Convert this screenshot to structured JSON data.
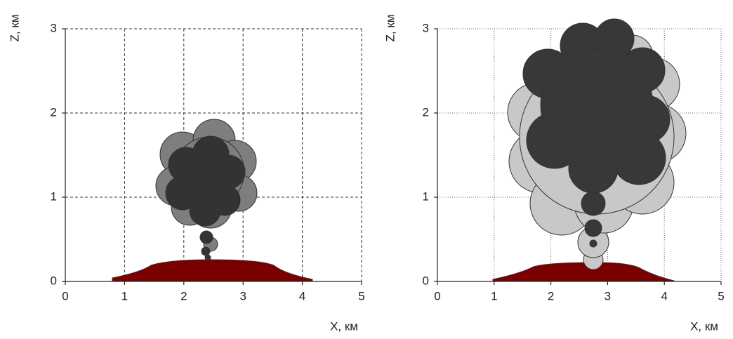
{
  "chart_data": [
    {
      "type": "illustration",
      "xlabel": "X, км",
      "ylabel": "Z, км",
      "xlim": [
        0,
        5
      ],
      "ylim": [
        0,
        3
      ],
      "xticks": [
        0,
        1,
        2,
        3,
        4,
        5
      ],
      "yticks": [
        0,
        1,
        2,
        3
      ],
      "grid": true
    },
    {
      "type": "illustration",
      "xlabel": "X, км",
      "ylabel": "Z, км",
      "xlim": [
        0,
        5
      ],
      "ylim": [
        0,
        3
      ],
      "xticks": [
        0,
        1,
        2,
        3,
        4,
        5
      ],
      "yticks": [
        0,
        1,
        2,
        3
      ],
      "grid": true
    }
  ]
}
